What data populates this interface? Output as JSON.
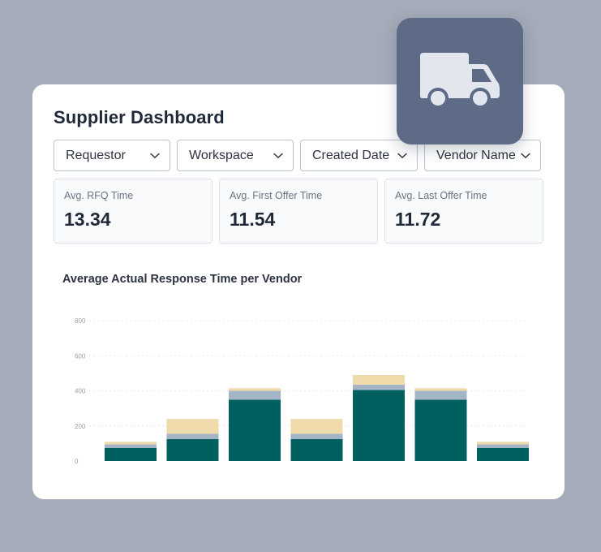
{
  "dashboard": {
    "title": "Supplier Dashboard",
    "icon": "truck-icon"
  },
  "filters": [
    {
      "label": "Requestor",
      "width": 144
    },
    {
      "label": "Workspace",
      "width": 144
    },
    {
      "label": "Created Date",
      "width": 145
    },
    {
      "label": "Vendor Name",
      "width": 144
    }
  ],
  "metrics": [
    {
      "label": "Avg. RFQ Time",
      "value": "13.34"
    },
    {
      "label": "Avg. First Offer Time",
      "value": "11.54"
    },
    {
      "label": "Avg. Last Offer Time",
      "value": "11.72"
    }
  ],
  "colors": {
    "primary": "#005f5f",
    "secondary": "#a3b4c6",
    "tertiary": "#efdaab"
  },
  "chart_data": {
    "type": "bar",
    "stacked": true,
    "title": "Average Actual Response Time per Vendor",
    "yticks": [
      "0",
      "200",
      "400",
      "600",
      "800"
    ],
    "ylim": [
      0,
      800
    ],
    "categories": [
      "",
      "",
      "",
      "",
      "",
      "",
      ""
    ],
    "series": [
      {
        "color": "#005f5f",
        "values": [
          75,
          125,
          350,
          125,
          405,
          350,
          75
        ]
      },
      {
        "color": "#a3b4c6",
        "values": [
          20,
          30,
          50,
          30,
          30,
          50,
          20
        ]
      },
      {
        "color": "#efdaab",
        "values": [
          15,
          85,
          15,
          85,
          55,
          15,
          15
        ]
      }
    ],
    "grid": true,
    "legend": "none"
  }
}
